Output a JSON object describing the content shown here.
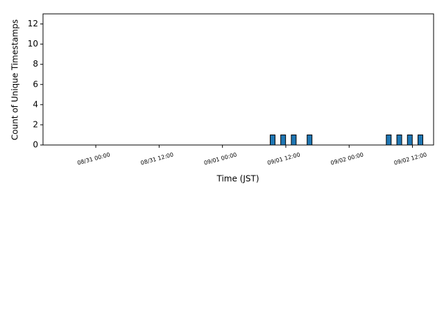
{
  "chart_data": {
    "type": "bar",
    "x": [
      "09/01 09:30",
      "09/01 11:30",
      "09/01 13:30",
      "09/01 16:30",
      "09/02 07:30",
      "09/02 09:30",
      "09/02 11:30",
      "09/02 13:30"
    ],
    "values": [
      1,
      1,
      1,
      1,
      1,
      1,
      1,
      1
    ],
    "color": "#1f77b4",
    "xlabel": "Time (JST)",
    "ylabel": "Count of Unique Timestamps",
    "xlim": [
      "08/30 14:00",
      "09/02 16:00"
    ],
    "xticks": [
      "08/31 00:00",
      "08/31 12:00",
      "09/01 00:00",
      "09/01 12:00",
      "09/02 00:00",
      "09/02 12:00"
    ],
    "ylim": [
      0,
      13
    ],
    "yticks": [
      0,
      2,
      4,
      6,
      8,
      10,
      12
    ]
  }
}
